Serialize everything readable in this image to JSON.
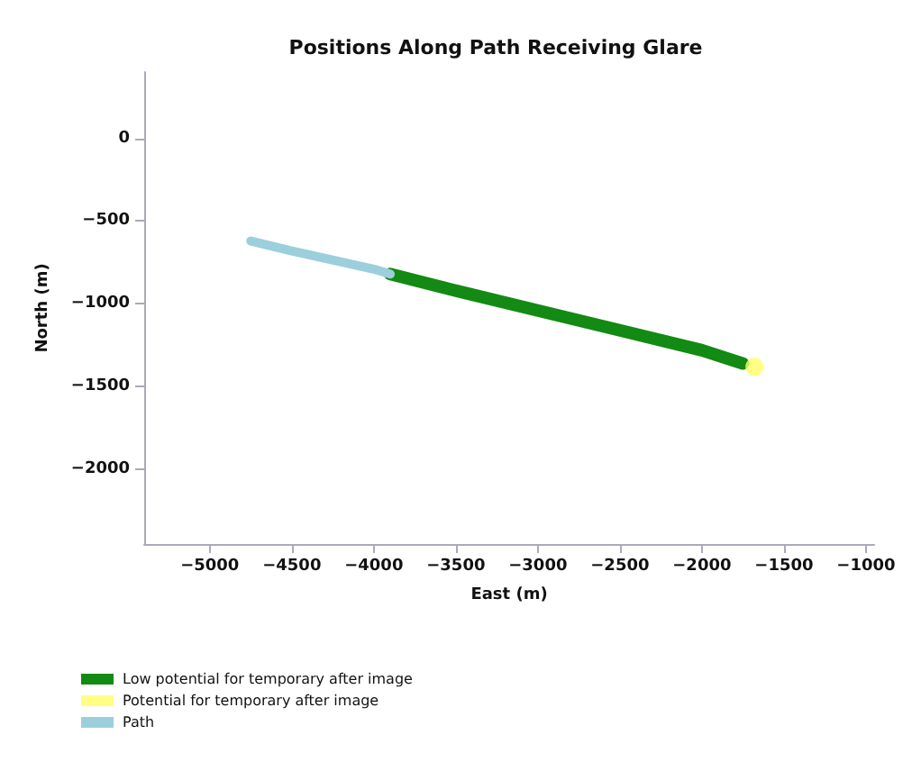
{
  "chart_data": {
    "type": "line",
    "title": "Positions Along Path Receiving Glare",
    "xlabel": "East (m)",
    "ylabel": "North (m)",
    "series": [
      {
        "name": "Low potential for temporary after image",
        "color": "#138a13",
        "marker": "none",
        "x": [
          -3900,
          -3500,
          -3000,
          -2500,
          -2000,
          -1750
        ],
        "values": [
          -820,
          -920,
          -1040,
          -1160,
          -1280,
          -1360
        ]
      },
      {
        "name": "Potential for temporary after image",
        "color": "#ffff66",
        "type": "scatter",
        "marker": "circle",
        "x": [
          -1680
        ],
        "values": [
          -1380
        ]
      },
      {
        "name": "Path",
        "color": "#9ccfdc",
        "marker": "none",
        "x": [
          -4750,
          -4500,
          -4000,
          -3900
        ],
        "values": [
          -620,
          -680,
          -790,
          -820
        ]
      }
    ],
    "xlim": [
      -5400,
      -950
    ],
    "xticks": [
      -5000,
      -4500,
      -4000,
      -3500,
      -3000,
      -2500,
      -2000,
      -1500,
      -1000
    ],
    "ylim": [
      -2450,
      400
    ],
    "yticks": [
      -2000,
      -1500,
      -1000,
      -500,
      0
    ],
    "legend": "bottom"
  }
}
